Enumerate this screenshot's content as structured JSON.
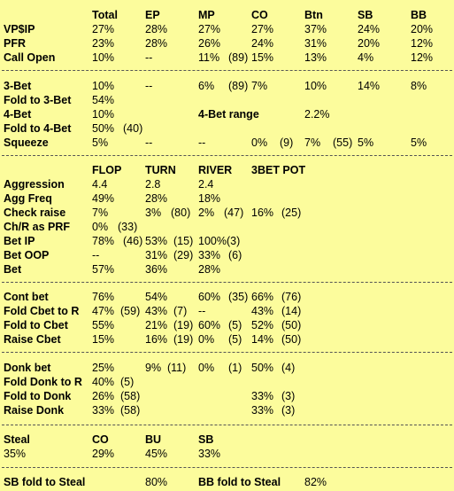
{
  "positions_header": [
    "Total",
    "EP",
    "MP",
    "CO",
    "Btn",
    "SB",
    "BB"
  ],
  "preflop": {
    "vpip": {
      "label": "VP$IP",
      "values": [
        "27%",
        "28%",
        "27%",
        "27%",
        "37%",
        "24%",
        "20%"
      ]
    },
    "pfr": {
      "label": "PFR",
      "values": [
        "23%",
        "28%",
        "26%",
        "24%",
        "31%",
        "20%",
        "12%"
      ]
    },
    "call_open": {
      "label": "Call Open",
      "total": "10%",
      "ep": "--",
      "mp": "11%",
      "mp_n": "(89)",
      "co": "15%",
      "btn": "13%",
      "sb": "4%",
      "bb": "12%"
    }
  },
  "threebet": {
    "three_bet": {
      "label": "3-Bet",
      "total": "10%",
      "ep": "--",
      "mp": "6%",
      "mp_n": "(89)",
      "co": "7%",
      "btn": "10%",
      "sb": "14%",
      "bb": "8%"
    },
    "fold_to_3bet": {
      "label": "Fold to 3-Bet",
      "total": "54%"
    },
    "four_bet": {
      "label": "4-Bet",
      "total": "10%"
    },
    "four_bet_range": {
      "label": "4-Bet range",
      "value": "2.2%"
    },
    "fold_to_4bet": {
      "label": "Fold to 4-Bet",
      "total": "50%",
      "n": "(40)"
    },
    "squeeze": {
      "label": "Squeeze",
      "total": "5%",
      "ep": "--",
      "mp": "--",
      "co": "0%",
      "co_n": "(9)",
      "btn": "7%",
      "btn_n": "(55)",
      "sb": "5%",
      "bb": "5%"
    }
  },
  "postflop_header": [
    "FLOP",
    "TURN",
    "RIVER",
    "3BET POT"
  ],
  "postflop": {
    "aggression": {
      "label": "Aggression",
      "flop": "4.4",
      "turn": "2.8",
      "river": "2.4"
    },
    "agg_freq": {
      "label": "Agg Freq",
      "flop": "49%",
      "turn": "28%",
      "river": "18%"
    },
    "check_raise": {
      "label": "Check raise",
      "flop": "7%",
      "turn": "3%",
      "turn_n": "(80)",
      "river": "2%",
      "river_n": "(47)",
      "pot3": "16%",
      "pot3_n": "(25)"
    },
    "chr_as_prf": {
      "label": "Ch/R as PRF",
      "flop": "0%",
      "flop_n": "(33)"
    },
    "bet_ip": {
      "label": "Bet IP",
      "flop": "78%",
      "flop_n": "(46)",
      "turn": "53%",
      "turn_n": "(15)",
      "river": "100%(3)"
    },
    "bet_oop": {
      "label": "Bet OOP",
      "flop": "--",
      "turn": "31%",
      "turn_n": "(29)",
      "river": "33%",
      "river_n": "(6)"
    },
    "bet": {
      "label": "Bet",
      "flop": "57%",
      "turn": "36%",
      "river": "28%"
    }
  },
  "cbet": {
    "cont_bet": {
      "label": "Cont bet",
      "flop": "76%",
      "turn": "54%",
      "river": "60%",
      "river_n": "(35)",
      "pot3": "66%",
      "pot3_n": "(76)"
    },
    "fold_cbet_to_r": {
      "label": "Fold Cbet to R",
      "flop": "47%",
      "flop_n": "(59)",
      "turn": "43%",
      "turn_n": "(7)",
      "river": "--",
      "pot3": "43%",
      "pot3_n": "(14)"
    },
    "fold_to_cbet": {
      "label": "Fold to Cbet",
      "flop": "55%",
      "turn": "21%",
      "turn_n": "(19)",
      "river": "60%",
      "river_n": "(5)",
      "pot3": "52%",
      "pot3_n": "(50)"
    },
    "raise_cbet": {
      "label": "Raise Cbet",
      "flop": "15%",
      "turn": "16%",
      "turn_n": "(19)",
      "river": "0%",
      "river_n": "(5)",
      "pot3": "14%",
      "pot3_n": "(50)"
    }
  },
  "donk": {
    "donk_bet": {
      "label": "Donk bet",
      "flop": "25%",
      "turn": "9%",
      "turn_n": "(11)",
      "river": "0%",
      "river_n": "(1)",
      "pot3": "50%",
      "pot3_n": "(4)"
    },
    "fold_donk_to_r": {
      "label": "Fold Donk to R",
      "flop": "40%",
      "flop_n": "(5)"
    },
    "fold_to_donk": {
      "label": "Fold to Donk",
      "flop": "26%",
      "flop_n": "(58)",
      "pot3": "33%",
      "pot3_n": "(3)"
    },
    "raise_donk": {
      "label": "Raise Donk",
      "flop": "33%",
      "flop_n": "(58)",
      "pot3": "33%",
      "pot3_n": "(3)"
    }
  },
  "steal": {
    "label": "Steal",
    "total": "35%",
    "headers": [
      "CO",
      "BU",
      "SB"
    ],
    "values": [
      "29%",
      "45%",
      "33%"
    ]
  },
  "blind_defense": {
    "sb_label": "SB fold to Steal",
    "sb_value": "80%",
    "bb_label": "BB fold to  Steal",
    "bb_value": "82%"
  }
}
